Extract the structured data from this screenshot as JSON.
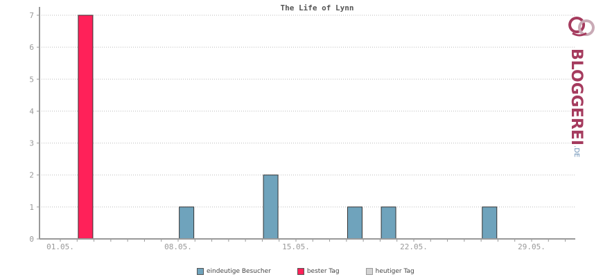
{
  "chart_data": {
    "type": "bar",
    "title": "The Life of Lynn",
    "x_tick_labels": [
      "01.05.",
      "08.05.",
      "15.05.",
      "22.05.",
      "29.05."
    ],
    "y_ticks": [
      0,
      1,
      2,
      3,
      4,
      5,
      6,
      7
    ],
    "ylim": [
      0,
      7
    ],
    "grid": true,
    "series": [
      {
        "name": "eindeutige Besucher",
        "color": "#6fa3bc",
        "points": [
          {
            "day": "08.05.",
            "value": 1
          },
          {
            "day": "13.05.",
            "value": 2
          },
          {
            "day": "18.05.",
            "value": 1
          },
          {
            "day": "20.05.",
            "value": 1
          },
          {
            "day": "26.05.",
            "value": 1
          }
        ]
      },
      {
        "name": "bester Tag",
        "color": "#ff2159",
        "points": [
          {
            "day": "02.05.",
            "value": 7
          }
        ]
      },
      {
        "name": "heutiger Tag",
        "color": "#d3d3d3",
        "points": []
      }
    ],
    "legend_position": "bottom"
  },
  "logo": {
    "text": "BLOGGEREI",
    "suffix": ".DE"
  }
}
